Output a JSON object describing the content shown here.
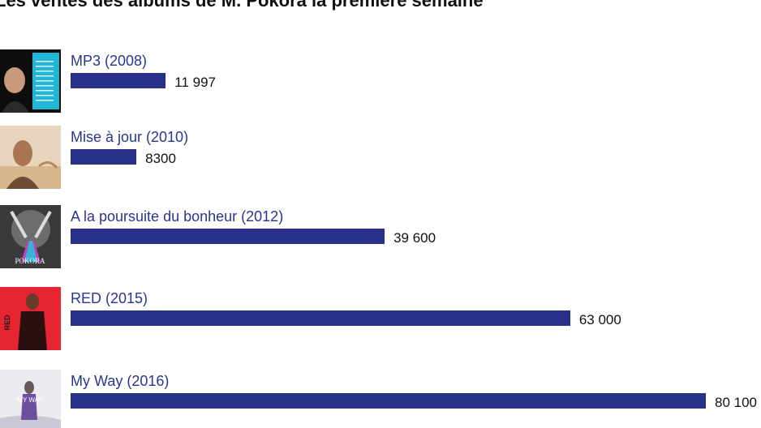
{
  "colors": {
    "bar": "#28308a",
    "label": "#2b3590",
    "value": "#111111"
  },
  "chart_data": {
    "type": "bar",
    "orientation": "horizontal",
    "title": "Les ventes des albums de M. Pokora la première semaine",
    "xlabel": "",
    "ylabel": "",
    "xlim": [
      0,
      80100
    ],
    "grid": false,
    "legend": "none",
    "categories": [
      "MP3 (2008)",
      "Mise à jour (2010)",
      "A la poursuite du bonheur (2012)",
      "RED (2015)",
      "My Way (2016)"
    ],
    "values": [
      11997,
      8300,
      39600,
      63000,
      80100
    ],
    "value_labels": [
      "11 997",
      "8300",
      "39 600",
      "63 000",
      "80 100"
    ],
    "covers": [
      {
        "name": "mp3-cover-icon",
        "text": ""
      },
      {
        "name": "mise-a-jour-cover-icon",
        "text": ""
      },
      {
        "name": "poursuite-bonheur-cover-icon",
        "text": "POKORA"
      },
      {
        "name": "red-cover-icon",
        "text": "RED"
      },
      {
        "name": "my-way-cover-icon",
        "text": "MY WAY"
      }
    ]
  }
}
